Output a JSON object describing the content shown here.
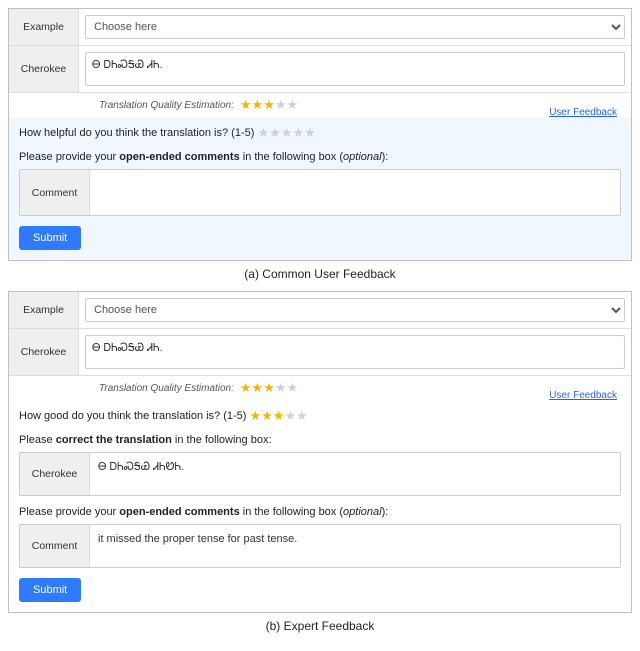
{
  "panelA": {
    "exampleLabel": "Example",
    "choosePlaceholder": "Choose here",
    "cherokeeLabel": "Cherokee",
    "cherokeeText": "Ꮎ ᎠᏂᏍᎦᏯ ᏗᏂ.",
    "estimationLabel": "Translation Quality Estimation:",
    "estimationStars": 3,
    "userFeedbackLink": "User Feedback",
    "question": "How helpful do you think the translation is? (1-5)",
    "questionStars": 0,
    "commentsPromptPre": "Please provide your ",
    "commentsPromptBold": "open-ended comments",
    "commentsPromptPost": " in the following box (",
    "commentsPromptItalic": "optional",
    "commentsPromptEnd": "):",
    "commentLabel": "Comment",
    "submitLabel": "Submit",
    "caption": "(a) Common User Feedback"
  },
  "panelB": {
    "exampleLabel": "Example",
    "choosePlaceholder": "Choose here",
    "cherokeeLabel": "Cherokee",
    "cherokeeText": "Ꮎ ᎠᏂᏍᎦᏯ ᏗᏂ.",
    "estimationLabel": "Translation Quality Estimation:",
    "estimationStars": 3,
    "userFeedbackLink": "User Feedback",
    "question": "How good do you think the translation is? (1-5)",
    "questionStars": 3,
    "correctPromptPre": "Please ",
    "correctPromptBold": "correct the translation",
    "correctPromptPost": " in the following box:",
    "correctLabel": "Cherokee",
    "correctText": "Ꮎ ᎠᏂᏍᎦᏯ ᏗᏂᏬᏂ.",
    "commentsPromptPre": "Please provide your ",
    "commentsPromptBold": "open-ended comments",
    "commentsPromptPost": " in the following box (",
    "commentsPromptItalic": "optional",
    "commentsPromptEnd": "):",
    "commentLabel": "Comment",
    "commentText": "it missed the proper tense for past tense.",
    "submitLabel": "Submit",
    "caption": "(b) Expert Feedback"
  }
}
